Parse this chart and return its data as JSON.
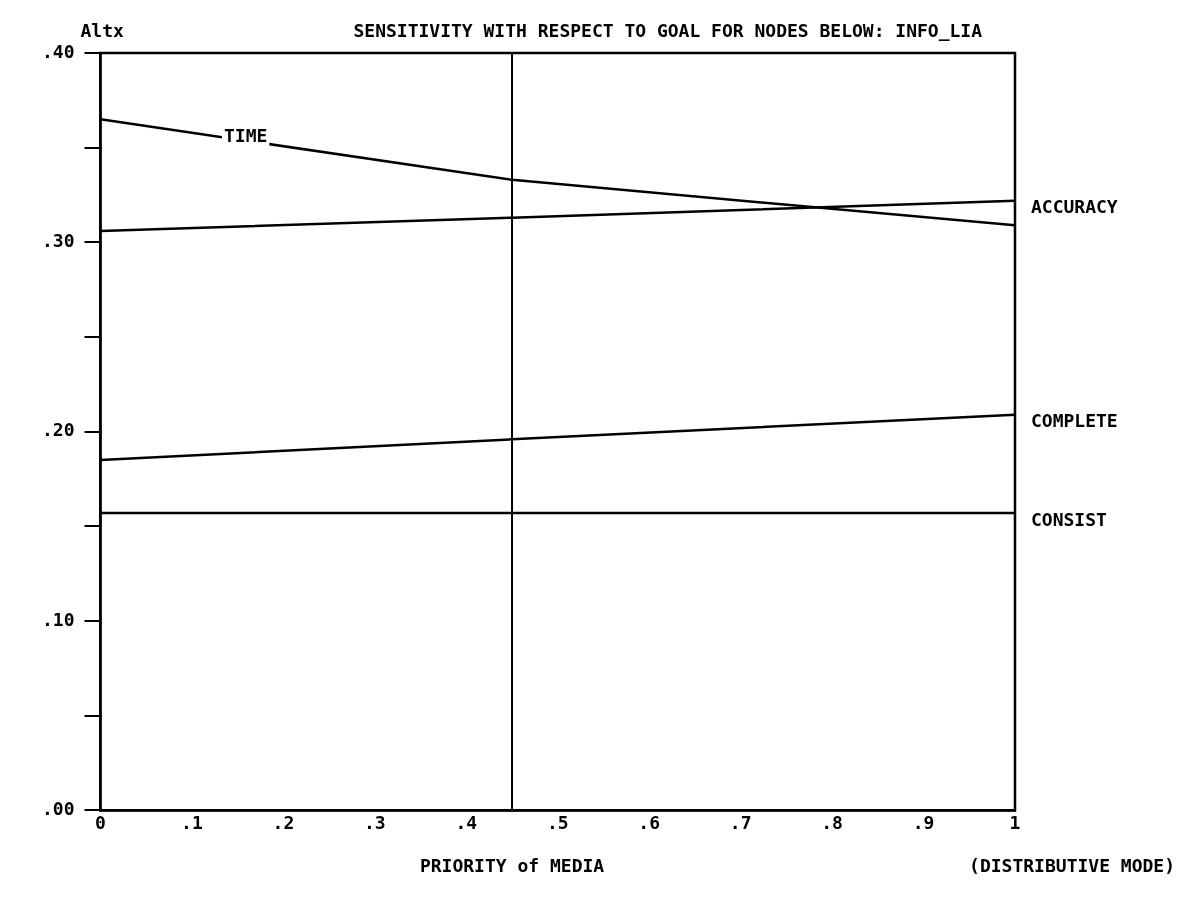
{
  "chart_data": {
    "type": "line",
    "title": "SENSITIVITY WITH RESPECT TO GOAL FOR NODES BELOW: INFO_LIA",
    "ylabel": "Altx",
    "xlabel": "PRIORITY of MEDIA",
    "annotations": [
      "(DISTRIBUTIVE MODE)"
    ],
    "xlim": [
      0,
      1
    ],
    "xticks": [
      0,
      {
        "value": 0.1,
        "label": ".1"
      },
      {
        "value": 0.2,
        "label": ".2"
      },
      {
        "value": 0.3,
        "label": ".3"
      },
      {
        "value": 0.4,
        "label": ".4"
      },
      {
        "value": 0.5,
        "label": ".5"
      },
      {
        "value": 0.6,
        "label": ".6"
      },
      {
        "value": 0.7,
        "label": ".7"
      },
      {
        "value": 0.8,
        "label": ".8"
      },
      {
        "value": 0.9,
        "label": ".9"
      },
      1
    ],
    "ylim": [
      0,
      0.4
    ],
    "yticks": [
      {
        "value": 0,
        "label": ".00"
      },
      {
        "value": 0.05,
        "label": null
      },
      {
        "value": 0.1,
        "label": ".10"
      },
      {
        "value": 0.15,
        "label": null
      },
      {
        "value": 0.2,
        "label": ".20"
      },
      {
        "value": 0.25,
        "label": null
      },
      {
        "value": 0.3,
        "label": ".30"
      },
      {
        "value": 0.35,
        "label": null
      },
      {
        "value": 0.4,
        "label": ".40"
      }
    ],
    "grid": false,
    "legend": false,
    "marker": "none",
    "line_style": "solid",
    "ref_lines": [
      {
        "axis": "x",
        "value": 0.45,
        "color": "#000000"
      }
    ],
    "series": [
      {
        "name": "TIME",
        "color": "#000000",
        "x": [
          0,
          0.45,
          1
        ],
        "values": [
          0.365,
          0.333,
          0.309
        ]
      },
      {
        "name": "ACCURACY",
        "color": "#000000",
        "x": [
          0,
          0.45,
          1
        ],
        "values": [
          0.306,
          0.313,
          0.322
        ]
      },
      {
        "name": "COMPLETE",
        "color": "#000000",
        "x": [
          0,
          0.45,
          1
        ],
        "values": [
          0.185,
          0.196,
          0.209
        ]
      },
      {
        "name": "CONSIST",
        "color": "#000000",
        "x": [
          0,
          0.45,
          1
        ],
        "values": [
          0.157,
          0.157,
          0.157
        ]
      }
    ]
  }
}
